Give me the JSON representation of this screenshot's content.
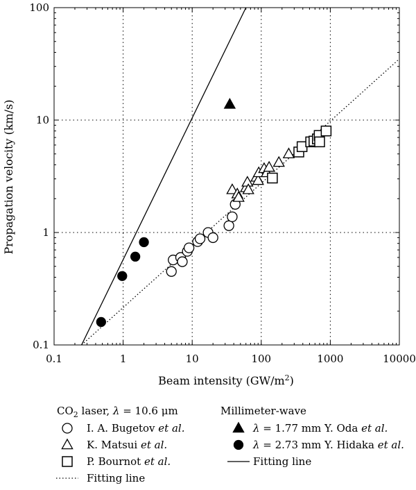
{
  "chart_data": {
    "type": "scatter",
    "xscale": "log",
    "yscale": "log",
    "xlim": [
      0.1,
      10000
    ],
    "ylim": [
      0.1,
      100
    ],
    "xlabel": "Beam intensity (GW/m",
    "xlabel_sup": "2",
    "xlabel_end": ")",
    "ylabel": "Propagation velocity (km/s)",
    "grid": "dotted at decades",
    "x_ticks": [
      {
        "v": 0.1,
        "label": "0.1"
      },
      {
        "v": 1,
        "label": "1"
      },
      {
        "v": 10,
        "label": "10"
      },
      {
        "v": 100,
        "label": "100"
      },
      {
        "v": 1000,
        "label": "1000"
      },
      {
        "v": 10000,
        "label": "10000"
      }
    ],
    "y_ticks": [
      {
        "v": 0.1,
        "label": "0.1"
      },
      {
        "v": 1,
        "label": "1"
      },
      {
        "v": 10,
        "label": "10"
      },
      {
        "v": 100,
        "label": "100"
      }
    ],
    "series": [
      {
        "marker": "circle-open",
        "points": [
          [
            5,
            0.45
          ],
          [
            5.3,
            0.57
          ],
          [
            6.8,
            0.6
          ],
          [
            7.2,
            0.55
          ],
          [
            8.5,
            0.68
          ],
          [
            9,
            0.73
          ],
          [
            12,
            0.83
          ],
          [
            13,
            0.88
          ],
          [
            17,
            1.0
          ],
          [
            20,
            0.9
          ],
          [
            34,
            1.15
          ],
          [
            38,
            1.38
          ],
          [
            42,
            1.78
          ]
        ]
      },
      {
        "marker": "triangle-open",
        "points": [
          [
            38,
            2.4
          ],
          [
            45,
            2.2
          ],
          [
            47,
            2.05
          ],
          [
            60,
            2.5
          ],
          [
            63,
            2.8
          ],
          [
            65,
            2.4
          ],
          [
            85,
            3.1
          ],
          [
            90,
            2.9
          ],
          [
            92,
            3.4
          ],
          [
            110,
            3.7
          ],
          [
            120,
            3.4
          ],
          [
            130,
            3.8
          ],
          [
            180,
            4.2
          ],
          [
            250,
            5.0
          ]
        ]
      },
      {
        "marker": "square-open",
        "points": [
          [
            145,
            3.05
          ],
          [
            350,
            5.2
          ],
          [
            390,
            5.8
          ],
          [
            520,
            6.4
          ],
          [
            580,
            6.5
          ],
          [
            650,
            6.8
          ],
          [
            690,
            7.3
          ],
          [
            700,
            6.4
          ],
          [
            870,
            8.0
          ]
        ]
      },
      {
        "marker": "triangle-filled",
        "points": [
          [
            35,
            13.8
          ]
        ]
      },
      {
        "marker": "circle-filled",
        "points": [
          [
            0.48,
            0.16
          ],
          [
            0.97,
            0.41
          ],
          [
            1.5,
            0.61
          ],
          [
            2.0,
            0.82
          ]
        ]
      }
    ],
    "lines": [
      {
        "style": "solid",
        "from": [
          0.25,
          0.1
        ],
        "to": [
          60,
          100
        ]
      },
      {
        "style": "dotted",
        "from": [
          0.25,
          0.1
        ],
        "to": [
          10000,
          35
        ]
      }
    ],
    "legend": {
      "left_group": {
        "title_pre": "CO",
        "title_sub": "2",
        "title_mid": " laser, ",
        "title_lambda": "λ",
        "title_post": " = 10.6 μm",
        "items": [
          {
            "marker": "circle-open",
            "name": "I. A. Bugetov",
            "etal": " et al."
          },
          {
            "marker": "triangle-open",
            "name": "K. Matsui",
            "etal": " et al."
          },
          {
            "marker": "square-open",
            "name": "P. Bournot",
            "etal": " et al."
          },
          {
            "marker": "dotted-line",
            "name": "Fitting line",
            "etal": ""
          }
        ]
      },
      "right_group": {
        "title": "Millimeter-wave",
        "items": [
          {
            "marker": "triangle-filled",
            "lambda": "λ",
            "name": " = 1.77 mm Y. Oda",
            "etal": " et al."
          },
          {
            "marker": "circle-filled",
            "lambda": "λ",
            "name": " = 2.73 mm Y. Hidaka",
            "etal": " et al."
          },
          {
            "marker": "solid-line",
            "lambda": "",
            "name": "Fitting line",
            "etal": ""
          }
        ]
      }
    }
  }
}
